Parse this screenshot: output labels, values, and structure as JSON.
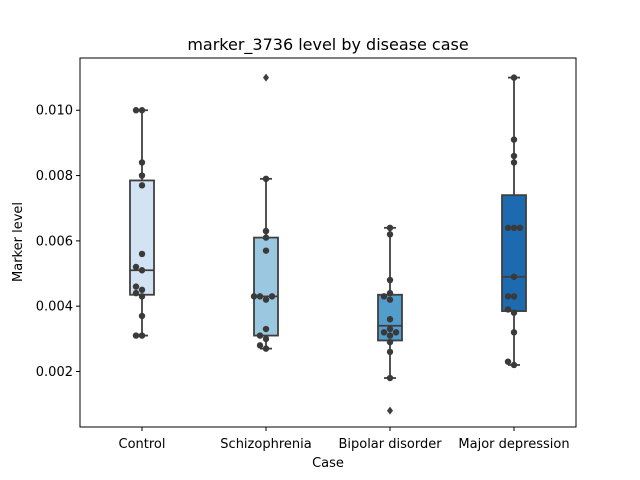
{
  "chart_data": {
    "type": "box",
    "title": "marker_3736 level by disease case",
    "xlabel": "Case",
    "ylabel": "Marker level",
    "ylim": [
      0.0003,
      0.0116
    ],
    "yticks": [
      0.002,
      0.004,
      0.006,
      0.008,
      0.01
    ],
    "ytick_labels": [
      "0.002",
      "0.004",
      "0.006",
      "0.008",
      "0.010"
    ],
    "grid": false,
    "categories": [
      "Control",
      "Schizophrenia",
      "Bipolar disorder",
      "Major depression"
    ],
    "series": [
      {
        "category": "Control",
        "color": "#d2e3f3",
        "q1": 0.00435,
        "median": 0.0051,
        "q3": 0.00785,
        "whisker_low": 0.0031,
        "whisker_high": 0.01,
        "outliers": [],
        "points": [
          0.0031,
          0.0031,
          0.0037,
          0.0043,
          0.0044,
          0.0045,
          0.0046,
          0.0051,
          0.0052,
          0.0056,
          0.0077,
          0.008,
          0.0084,
          0.01,
          0.01
        ]
      },
      {
        "category": "Schizophrenia",
        "color": "#9ac8e0",
        "q1": 0.0031,
        "median": 0.0043,
        "q3": 0.0061,
        "whisker_low": 0.0027,
        "whisker_high": 0.0079,
        "outliers": [
          0.011
        ],
        "points": [
          0.0027,
          0.0028,
          0.003,
          0.0031,
          0.0033,
          0.0042,
          0.0043,
          0.0043,
          0.0043,
          0.0057,
          0.0061,
          0.0063,
          0.0079
        ]
      },
      {
        "category": "Bipolar disorder",
        "color": "#529dcc",
        "q1": 0.00295,
        "median": 0.0034,
        "q3": 0.00435,
        "whisker_low": 0.0018,
        "whisker_high": 0.0064,
        "outliers": [
          0.0008
        ],
        "points": [
          0.0018,
          0.0026,
          0.0029,
          0.0031,
          0.0032,
          0.0032,
          0.0033,
          0.0036,
          0.0042,
          0.0043,
          0.0044,
          0.0048,
          0.0062,
          0.0064
        ]
      },
      {
        "category": "Major depression",
        "color": "#1c6aaf",
        "q1": 0.00385,
        "median": 0.0049,
        "q3": 0.0074,
        "whisker_low": 0.0022,
        "whisker_high": 0.011,
        "outliers": [],
        "points": [
          0.0022,
          0.0023,
          0.0032,
          0.0038,
          0.0039,
          0.0043,
          0.0043,
          0.0049,
          0.0064,
          0.0064,
          0.0064,
          0.0084,
          0.0086,
          0.0091,
          0.011
        ]
      }
    ]
  }
}
